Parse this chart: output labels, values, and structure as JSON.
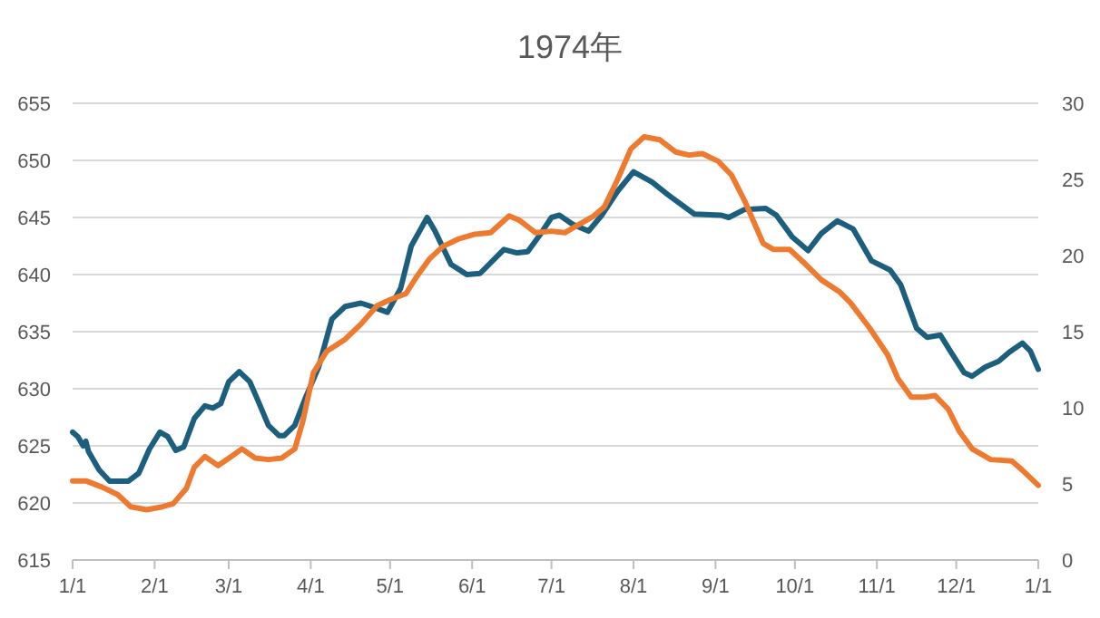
{
  "chart_data": {
    "type": "line",
    "title": "1974年",
    "xlim": [
      "1974-01-01",
      "1975-01-01"
    ],
    "xticks": [
      {
        "value": "1974-01-01",
        "label": "1/1"
      },
      {
        "value": "1974-02-01",
        "label": "2/1"
      },
      {
        "value": "1974-03-01",
        "label": "3/1"
      },
      {
        "value": "1974-04-01",
        "label": "4/1"
      },
      {
        "value": "1974-05-01",
        "label": "5/1"
      },
      {
        "value": "1974-06-01",
        "label": "6/1"
      },
      {
        "value": "1974-07-01",
        "label": "7/1"
      },
      {
        "value": "1974-08-01",
        "label": "8/1"
      },
      {
        "value": "1974-09-01",
        "label": "9/1"
      },
      {
        "value": "1974-10-01",
        "label": "10/1"
      },
      {
        "value": "1974-11-01",
        "label": "11/1"
      },
      {
        "value": "1974-12-01",
        "label": "12/1"
      },
      {
        "value": "1975-01-01",
        "label": "1/1"
      }
    ],
    "ylim": [
      615,
      655
    ],
    "yticks": [
      615,
      620,
      625,
      630,
      635,
      640,
      645,
      650,
      655
    ],
    "y2lim": [
      0,
      30
    ],
    "y2ticks": [
      0,
      5,
      10,
      15,
      20,
      25,
      30
    ],
    "grid": "y",
    "line_style": "solid",
    "series": [
      {
        "color": "#1b5e7e",
        "x": [
          "1974-01-01",
          "1974-01-03",
          "1974-01-05",
          "1974-01-06",
          "1974-01-07",
          "1974-01-11",
          "1974-01-15",
          "1974-01-22",
          "1974-01-26",
          "1974-01-30",
          "1974-02-03",
          "1974-02-06",
          "1974-02-09",
          "1974-02-12",
          "1974-02-16",
          "1974-02-20",
          "1974-02-23",
          "1974-02-26",
          "1974-03-01",
          "1974-03-05",
          "1974-03-09",
          "1974-03-12",
          "1974-03-16",
          "1974-03-20",
          "1974-03-22",
          "1974-03-26",
          "1974-03-30",
          "1974-04-04",
          "1974-04-09",
          "1974-04-14",
          "1974-04-20",
          "1974-04-24",
          "1974-04-30",
          "1974-05-05",
          "1974-05-09",
          "1974-05-15",
          "1974-05-18",
          "1974-05-24",
          "1974-05-30",
          "1974-06-04",
          "1974-06-10",
          "1974-06-13",
          "1974-06-18",
          "1974-06-22",
          "1974-06-27",
          "1974-07-01",
          "1974-07-04",
          "1974-07-09",
          "1974-07-15",
          "1974-07-20",
          "1974-07-26",
          "1974-08-01",
          "1974-08-08",
          "1974-08-14",
          "1974-08-24",
          "1974-09-03",
          "1974-09-06",
          "1974-09-12",
          "1974-09-20",
          "1974-09-24",
          "1974-09-30",
          "1974-10-06",
          "1974-10-11",
          "1974-10-17",
          "1974-10-23",
          "1974-10-30",
          "1974-11-06",
          "1974-11-10",
          "1974-11-16",
          "1974-11-20",
          "1974-11-25",
          "1974-11-29",
          "1974-12-04",
          "1974-12-07",
          "1974-12-12",
          "1974-12-17",
          "1974-12-21",
          "1974-12-26",
          "1974-12-29",
          "1975-01-01"
        ],
        "values": [
          626.2,
          625.8,
          625.0,
          625.4,
          624.5,
          622.9,
          621.9,
          621.9,
          622.6,
          624.7,
          626.2,
          625.8,
          624.6,
          624.9,
          627.4,
          628.5,
          628.3,
          628.7,
          630.6,
          631.5,
          630.6,
          629.0,
          626.8,
          625.9,
          625.9,
          626.8,
          629.2,
          631.9,
          636.1,
          637.2,
          637.5,
          637.2,
          636.7,
          638.8,
          642.5,
          645.0,
          643.8,
          640.9,
          640.0,
          640.1,
          641.5,
          642.2,
          641.9,
          642.0,
          643.6,
          645.0,
          645.2,
          644.4,
          643.8,
          645.2,
          647.3,
          649.0,
          648.1,
          647.0,
          645.3,
          645.2,
          645.0,
          645.7,
          645.8,
          645.2,
          643.3,
          642.1,
          643.6,
          644.7,
          644.0,
          641.2,
          640.4,
          639.1,
          635.3,
          634.5,
          634.7,
          633.2,
          631.4,
          631.1,
          631.9,
          632.4,
          633.2,
          634.0,
          633.3,
          631.7
        ]
      },
      {
        "color": "#ee7a30",
        "axis": "y2",
        "x": [
          "1974-01-01",
          "1974-01-06",
          "1974-01-12",
          "1974-01-18",
          "1974-01-23",
          "1974-01-29",
          "1974-02-04",
          "1974-02-08",
          "1974-02-13",
          "1974-02-16",
          "1974-02-20",
          "1974-02-25",
          "1974-03-02",
          "1974-03-06",
          "1974-03-11",
          "1974-03-16",
          "1974-03-21",
          "1974-03-26",
          "1974-03-29",
          "1974-04-02",
          "1974-04-07",
          "1974-04-14",
          "1974-04-20",
          "1974-04-26",
          "1974-05-01",
          "1974-05-07",
          "1974-05-11",
          "1974-05-16",
          "1974-05-21",
          "1974-05-27",
          "1974-06-02",
          "1974-06-08",
          "1974-06-15",
          "1974-06-19",
          "1974-06-25",
          "1974-07-01",
          "1974-07-06",
          "1974-07-11",
          "1974-07-17",
          "1974-07-21",
          "1974-07-26",
          "1974-07-31",
          "1974-08-05",
          "1974-08-11",
          "1974-08-17",
          "1974-08-22",
          "1974-08-27",
          "1974-09-02",
          "1974-09-07",
          "1974-09-12",
          "1974-09-19",
          "1974-09-23",
          "1974-09-29",
          "1974-10-04",
          "1974-10-11",
          "1974-10-18",
          "1974-10-22",
          "1974-10-29",
          "1974-11-05",
          "1974-11-09",
          "1974-11-14",
          "1974-11-19",
          "1974-11-23",
          "1974-11-28",
          "1974-12-02",
          "1974-12-07",
          "1974-12-14",
          "1974-12-22",
          "1974-12-26",
          "1975-01-01"
        ],
        "values": [
          5.2,
          5.2,
          4.8,
          4.3,
          3.5,
          3.3,
          3.5,
          3.7,
          4.7,
          6.1,
          6.8,
          6.2,
          6.8,
          7.3,
          6.7,
          6.6,
          6.7,
          7.3,
          9.1,
          12.3,
          13.7,
          14.5,
          15.5,
          16.7,
          17.1,
          17.5,
          18.6,
          19.8,
          20.6,
          21.1,
          21.4,
          21.5,
          22.6,
          22.3,
          21.5,
          21.6,
          21.5,
          22.0,
          22.6,
          23.2,
          25.0,
          27.0,
          27.8,
          27.6,
          26.8,
          26.6,
          26.7,
          26.2,
          25.3,
          23.6,
          20.8,
          20.4,
          20.4,
          19.6,
          18.4,
          17.6,
          16.9,
          15.3,
          13.5,
          11.9,
          10.7,
          10.7,
          10.8,
          9.9,
          8.5,
          7.3,
          6.6,
          6.5,
          5.9,
          4.9
        ]
      }
    ]
  }
}
